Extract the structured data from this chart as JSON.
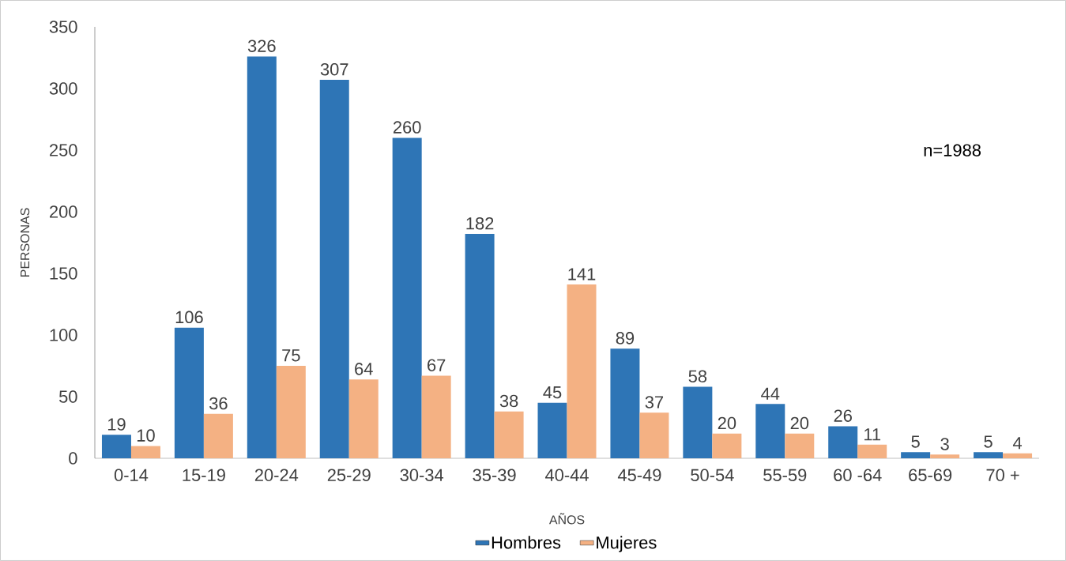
{
  "chart_data": {
    "type": "bar",
    "xlabel": "AÑOS",
    "ylabel": "PERSONAS",
    "categories": [
      "0-14",
      "15-19",
      "20-24",
      "25-29",
      "30-34",
      "35-39",
      "40-44",
      "45-49",
      "50-54",
      "55-59",
      "60 -64",
      "65-69",
      "70 +"
    ],
    "series": [
      {
        "name": "Hombres",
        "color": "#2e75b6",
        "values": [
          19,
          106,
          326,
          307,
          260,
          182,
          45,
          89,
          58,
          44,
          26,
          5,
          5
        ]
      },
      {
        "name": "Mujeres",
        "color": "#f4b183",
        "values": [
          10,
          36,
          75,
          64,
          67,
          38,
          141,
          37,
          20,
          20,
          11,
          3,
          4
        ]
      }
    ],
    "ylim": [
      0,
      350
    ],
    "yticks": [
      0,
      50,
      100,
      150,
      200,
      250,
      300,
      350
    ],
    "data_labels": true,
    "legend": "bottom",
    "annotations": [
      "n=1988"
    ]
  }
}
